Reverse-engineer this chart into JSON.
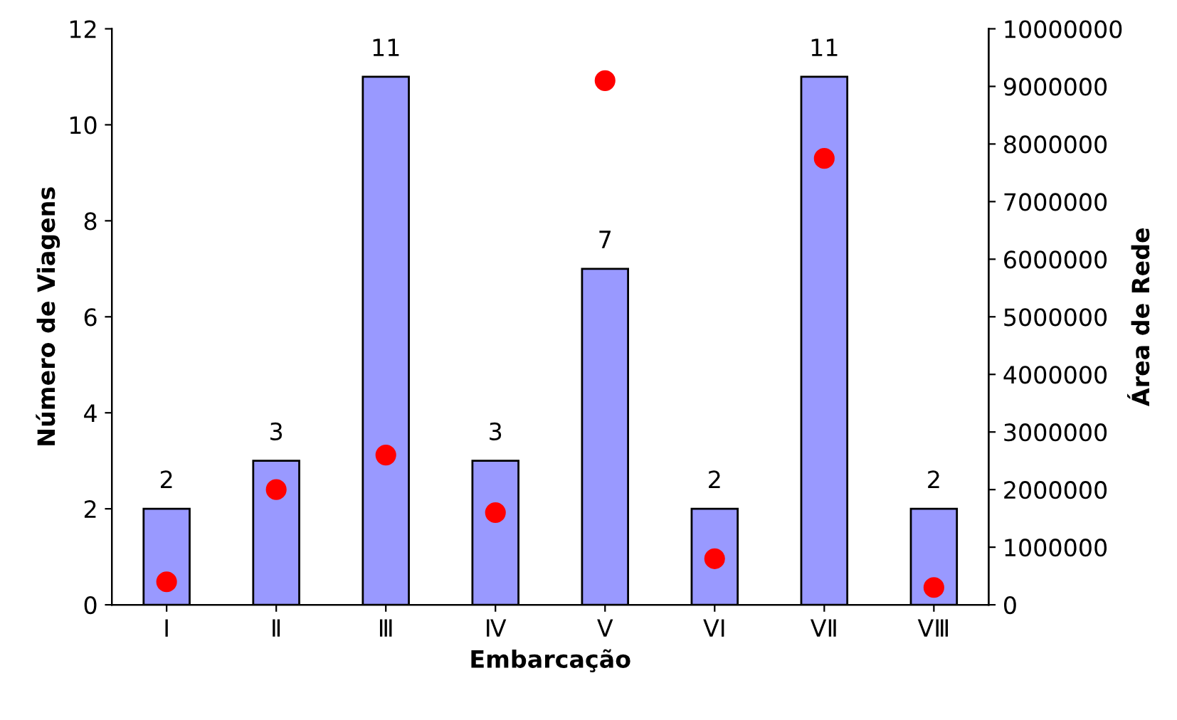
{
  "chart_data": {
    "type": "bar",
    "xlabel": "Embarcação",
    "ylabel": "Número de Viagens",
    "y2label": "Área de Rede",
    "categories": [
      "I",
      "Ⅱ",
      "Ⅲ",
      "Ⅳ",
      "V",
      "VI",
      "VⅡ",
      "VⅢ"
    ],
    "series": [
      {
        "color": "#9999ff",
        "values": [
          2,
          3,
          11,
          3,
          7,
          2,
          11,
          2
        ],
        "value_labels": [
          "2",
          "3",
          "11",
          "3",
          "7",
          "2",
          "11",
          "2"
        ]
      },
      {
        "type": "scatter",
        "axis": "y2",
        "color": "#ff0000",
        "marker": "circle",
        "values": [
          400000,
          2000000,
          2600000,
          1600000,
          9100000,
          800000,
          7750000,
          300000
        ]
      }
    ],
    "grid": false,
    "legend": false,
    "ylim": [
      0,
      12
    ],
    "yticks": [
      0,
      2,
      4,
      6,
      8,
      10,
      12
    ],
    "y2lim": [
      0,
      10000000
    ],
    "y2ticks": [
      0,
      1000000,
      2000000,
      3000000,
      4000000,
      5000000,
      6000000,
      7000000,
      8000000,
      9000000,
      10000000
    ]
  }
}
